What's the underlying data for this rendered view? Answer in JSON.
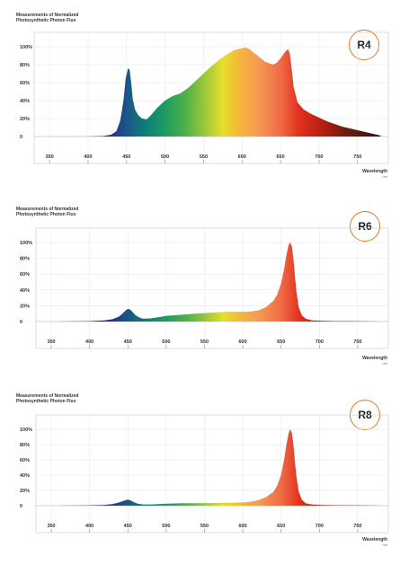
{
  "chart_data": [
    {
      "type": "area",
      "badge": "R4",
      "ylabel": [
        "Measurements of Normalized",
        "Photosynthetic Photon Flux"
      ],
      "xlabel": "Wavelength",
      "xunit": "nm",
      "x_ticks": [
        350,
        400,
        450,
        500,
        550,
        600,
        650,
        700,
        750
      ],
      "y_ticks": [
        "100%",
        "80%",
        "60%",
        "40%",
        "20%",
        "0"
      ],
      "xlim": [
        330,
        790
      ],
      "ylim": [
        0,
        100
      ],
      "grid": true,
      "x": [
        380,
        400,
        420,
        430,
        437,
        442,
        446,
        449,
        452,
        454,
        456,
        458,
        461,
        465,
        470,
        476,
        482,
        490,
        500,
        510,
        520,
        530,
        540,
        550,
        560,
        570,
        580,
        590,
        600,
        605,
        610,
        620,
        630,
        640,
        645,
        650,
        655,
        658,
        660,
        662,
        664,
        667,
        672,
        680,
        690,
        700,
        710,
        720,
        730,
        740,
        750,
        760,
        770,
        780
      ],
      "values": [
        0,
        0,
        0.5,
        2,
        6,
        18,
        40,
        65,
        76,
        74,
        60,
        42,
        30,
        24,
        20,
        19,
        24,
        32,
        40,
        45,
        48,
        54,
        62,
        70,
        78,
        85,
        91,
        96,
        98,
        99,
        97,
        90,
        83,
        80,
        82,
        87,
        93,
        96,
        97,
        92,
        78,
        55,
        38,
        30,
        25,
        21,
        17,
        14,
        11,
        9,
        7,
        5,
        3,
        1
      ]
    },
    {
      "type": "area",
      "badge": "R6",
      "ylabel": [
        "Measurements of Normalized",
        "Photosynthetic Photon Flux"
      ],
      "xlabel": "Wavelength",
      "xunit": "nm",
      "x_ticks": [
        350,
        400,
        450,
        500,
        550,
        600,
        650,
        700,
        750
      ],
      "y_ticks": [
        "100%",
        "80%",
        "60%",
        "40%",
        "20%",
        "0"
      ],
      "xlim": [
        330,
        790
      ],
      "ylim": [
        0,
        100
      ],
      "grid": true,
      "x": [
        360,
        400,
        420,
        430,
        438,
        443,
        447,
        450,
        453,
        456,
        460,
        465,
        470,
        480,
        490,
        500,
        520,
        540,
        560,
        580,
        600,
        610,
        620,
        630,
        640,
        645,
        650,
        654,
        657,
        660,
        662,
        664,
        666,
        668,
        670,
        673,
        677,
        682,
        690,
        700,
        720,
        750,
        780
      ],
      "values": [
        0,
        0.5,
        1.5,
        3,
        6,
        10,
        14,
        16,
        15,
        12,
        8,
        5,
        3.5,
        4,
        5.5,
        7,
        8.5,
        10,
        11,
        12,
        12,
        12.5,
        14,
        18,
        26,
        34,
        48,
        66,
        84,
        97,
        100,
        95,
        80,
        58,
        38,
        18,
        8,
        3.5,
        1.5,
        1,
        0.5,
        0.3,
        0
      ]
    },
    {
      "type": "area",
      "badge": "R8",
      "ylabel": [
        "Measurements of Normalized",
        "Photosynthetic Photon Flux"
      ],
      "xlabel": "Wavelength",
      "xunit": "nm",
      "x_ticks": [
        350,
        400,
        450,
        500,
        550,
        600,
        650,
        700,
        750
      ],
      "y_ticks": [
        "100%",
        "80%",
        "60%",
        "40%",
        "20%",
        "0"
      ],
      "xlim": [
        330,
        790
      ],
      "ylim": [
        0,
        100
      ],
      "grid": true,
      "x": [
        360,
        400,
        420,
        430,
        438,
        444,
        448,
        451,
        454,
        458,
        463,
        470,
        480,
        500,
        520,
        540,
        560,
        580,
        600,
        610,
        620,
        630,
        640,
        645,
        650,
        654,
        657,
        660,
        662,
        664,
        666,
        668,
        670,
        673,
        677,
        682,
        690,
        700,
        720,
        750,
        780
      ],
      "values": [
        0,
        0.3,
        1,
        2,
        4,
        6,
        7.5,
        7.8,
        6.5,
        4.5,
        2.5,
        1.5,
        1.5,
        2.5,
        3,
        3,
        3.2,
        3.5,
        4,
        5,
        7,
        11,
        18,
        26,
        40,
        60,
        80,
        95,
        100,
        95,
        80,
        58,
        38,
        18,
        8,
        3,
        1.5,
        1,
        0.5,
        0.3,
        0
      ]
    }
  ]
}
